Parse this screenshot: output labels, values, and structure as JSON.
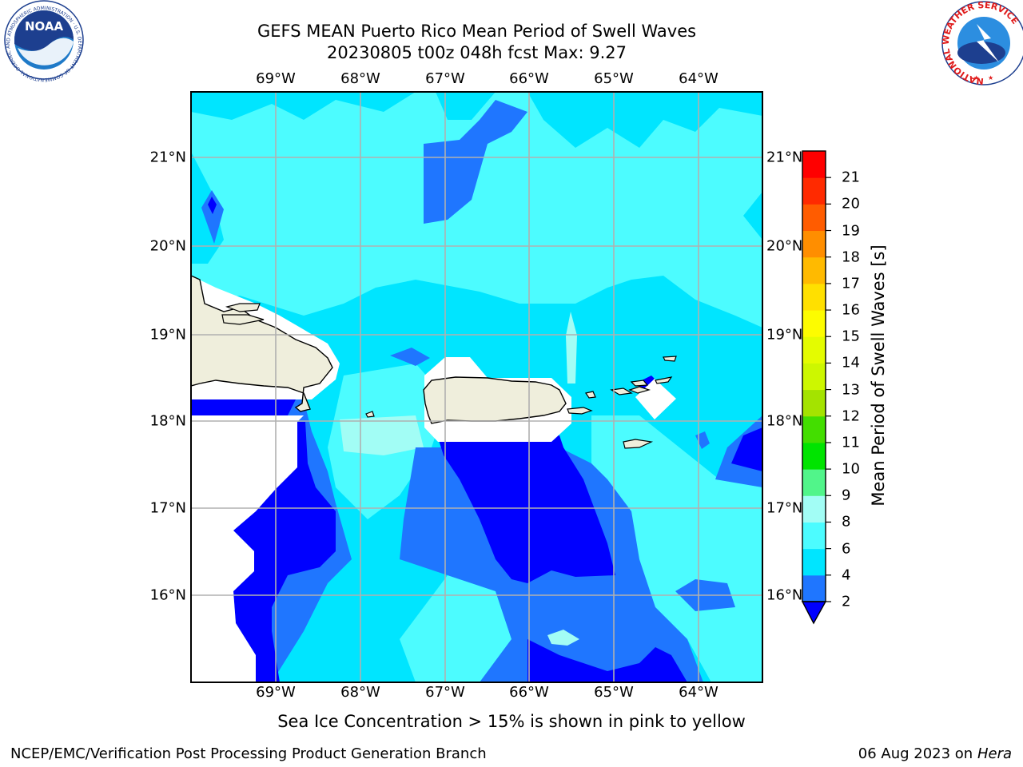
{
  "title": {
    "line1": "GEFS MEAN Puerto Rico Mean Period of Swell Waves",
    "line2": "20230805 t00z 048h fcst   Max: 9.27"
  },
  "map": {
    "lon_labels": [
      "69°W",
      "68°W",
      "67°W",
      "66°W",
      "65°W",
      "64°W"
    ],
    "lat_labels": [
      "21°N",
      "20°N",
      "19°N",
      "18°N",
      "17°N",
      "16°N"
    ],
    "land_color": "#efeedc"
  },
  "colorbar": {
    "title": "Mean Period of Swell Waves [s]",
    "ticks": [
      "2",
      "4",
      "6",
      "8",
      "9",
      "10",
      "11",
      "12",
      "13",
      "14",
      "15",
      "16",
      "17",
      "18",
      "19",
      "20",
      "21"
    ],
    "colors": [
      "#1f76ff",
      "#00e5ff",
      "#4cfcff",
      "#a2fdf5",
      "#51f58a",
      "#00e400",
      "#43de00",
      "#a4e300",
      "#cdf700",
      "#e4fc00",
      "#fdfc00",
      "#ffe000",
      "#ffba00",
      "#ff8e00",
      "#ff5c00",
      "#ff2a00",
      "#ff0000"
    ],
    "underflow_color": "#0000ff"
  },
  "bottom_note": "Sea Ice Concentration > 15% is shown in pink to yellow",
  "footer": {
    "left": "NCEP/EMC/Verification Post Processing Product Generation Branch",
    "right_date": "06 Aug 2023 on",
    "right_machine": "Hera"
  },
  "logos": {
    "noaa": {
      "text": "NOAA",
      "ring": "NATIONAL OCEANIC AND ATMOSPHERIC ADMINISTRATION · U.S. DEPARTMENT OF COMMERCE"
    },
    "nws": {
      "ring": "NATIONAL WEATHER SERVICE"
    }
  }
}
